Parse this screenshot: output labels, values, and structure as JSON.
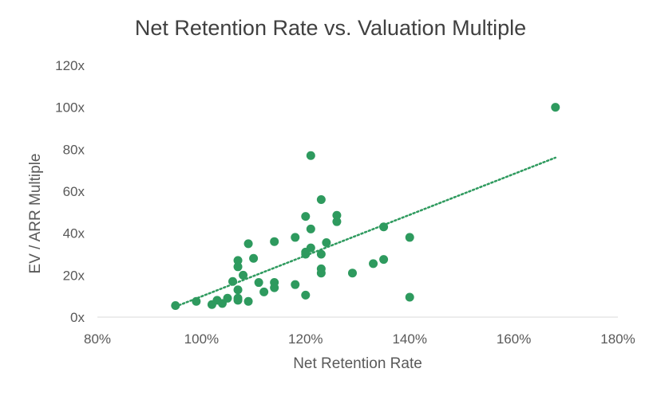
{
  "chart_data": {
    "type": "scatter",
    "title": "Net Retention Rate vs. Valuation Multiple",
    "xlabel": "Net Retention Rate",
    "ylabel": "EV / ARR Multiple",
    "xlim": [
      0.8,
      1.8
    ],
    "ylim": [
      0,
      120
    ],
    "x_ticks": [
      "80%",
      "100%",
      "120%",
      "140%",
      "160%",
      "180%"
    ],
    "y_ticks": [
      "0x",
      "20x",
      "40x",
      "60x",
      "80x",
      "100x",
      "120x"
    ],
    "grid": false,
    "legend": "none",
    "marker_color": "#2E9A5E",
    "trendline": {
      "type": "linear",
      "style": "dotted",
      "x": [
        0.95,
        1.68
      ],
      "y": [
        5,
        76
      ]
    },
    "series": [
      {
        "points": [
          [
            0.95,
            5.5
          ],
          [
            0.99,
            7.5
          ],
          [
            1.02,
            6
          ],
          [
            1.03,
            8
          ],
          [
            1.04,
            6.5
          ],
          [
            1.05,
            9
          ],
          [
            1.06,
            17
          ],
          [
            1.07,
            27
          ],
          [
            1.07,
            24
          ],
          [
            1.07,
            13
          ],
          [
            1.07,
            9
          ],
          [
            1.07,
            8
          ],
          [
            1.08,
            20
          ],
          [
            1.09,
            35
          ],
          [
            1.09,
            7.5
          ],
          [
            1.1,
            28
          ],
          [
            1.11,
            16.5
          ],
          [
            1.12,
            12
          ],
          [
            1.14,
            36
          ],
          [
            1.14,
            16.5
          ],
          [
            1.14,
            14
          ],
          [
            1.18,
            38
          ],
          [
            1.18,
            15.5
          ],
          [
            1.2,
            48
          ],
          [
            1.2,
            31
          ],
          [
            1.2,
            30
          ],
          [
            1.2,
            10.5
          ],
          [
            1.21,
            77
          ],
          [
            1.21,
            42
          ],
          [
            1.21,
            33
          ],
          [
            1.23,
            56
          ],
          [
            1.23,
            30
          ],
          [
            1.23,
            23
          ],
          [
            1.23,
            21
          ],
          [
            1.24,
            35.5
          ],
          [
            1.26,
            48.5
          ],
          [
            1.26,
            45.5
          ],
          [
            1.29,
            21
          ],
          [
            1.33,
            25.5
          ],
          [
            1.35,
            43
          ],
          [
            1.35,
            27.5
          ],
          [
            1.4,
            38
          ],
          [
            1.4,
            9.5
          ],
          [
            1.68,
            100
          ]
        ]
      }
    ]
  }
}
